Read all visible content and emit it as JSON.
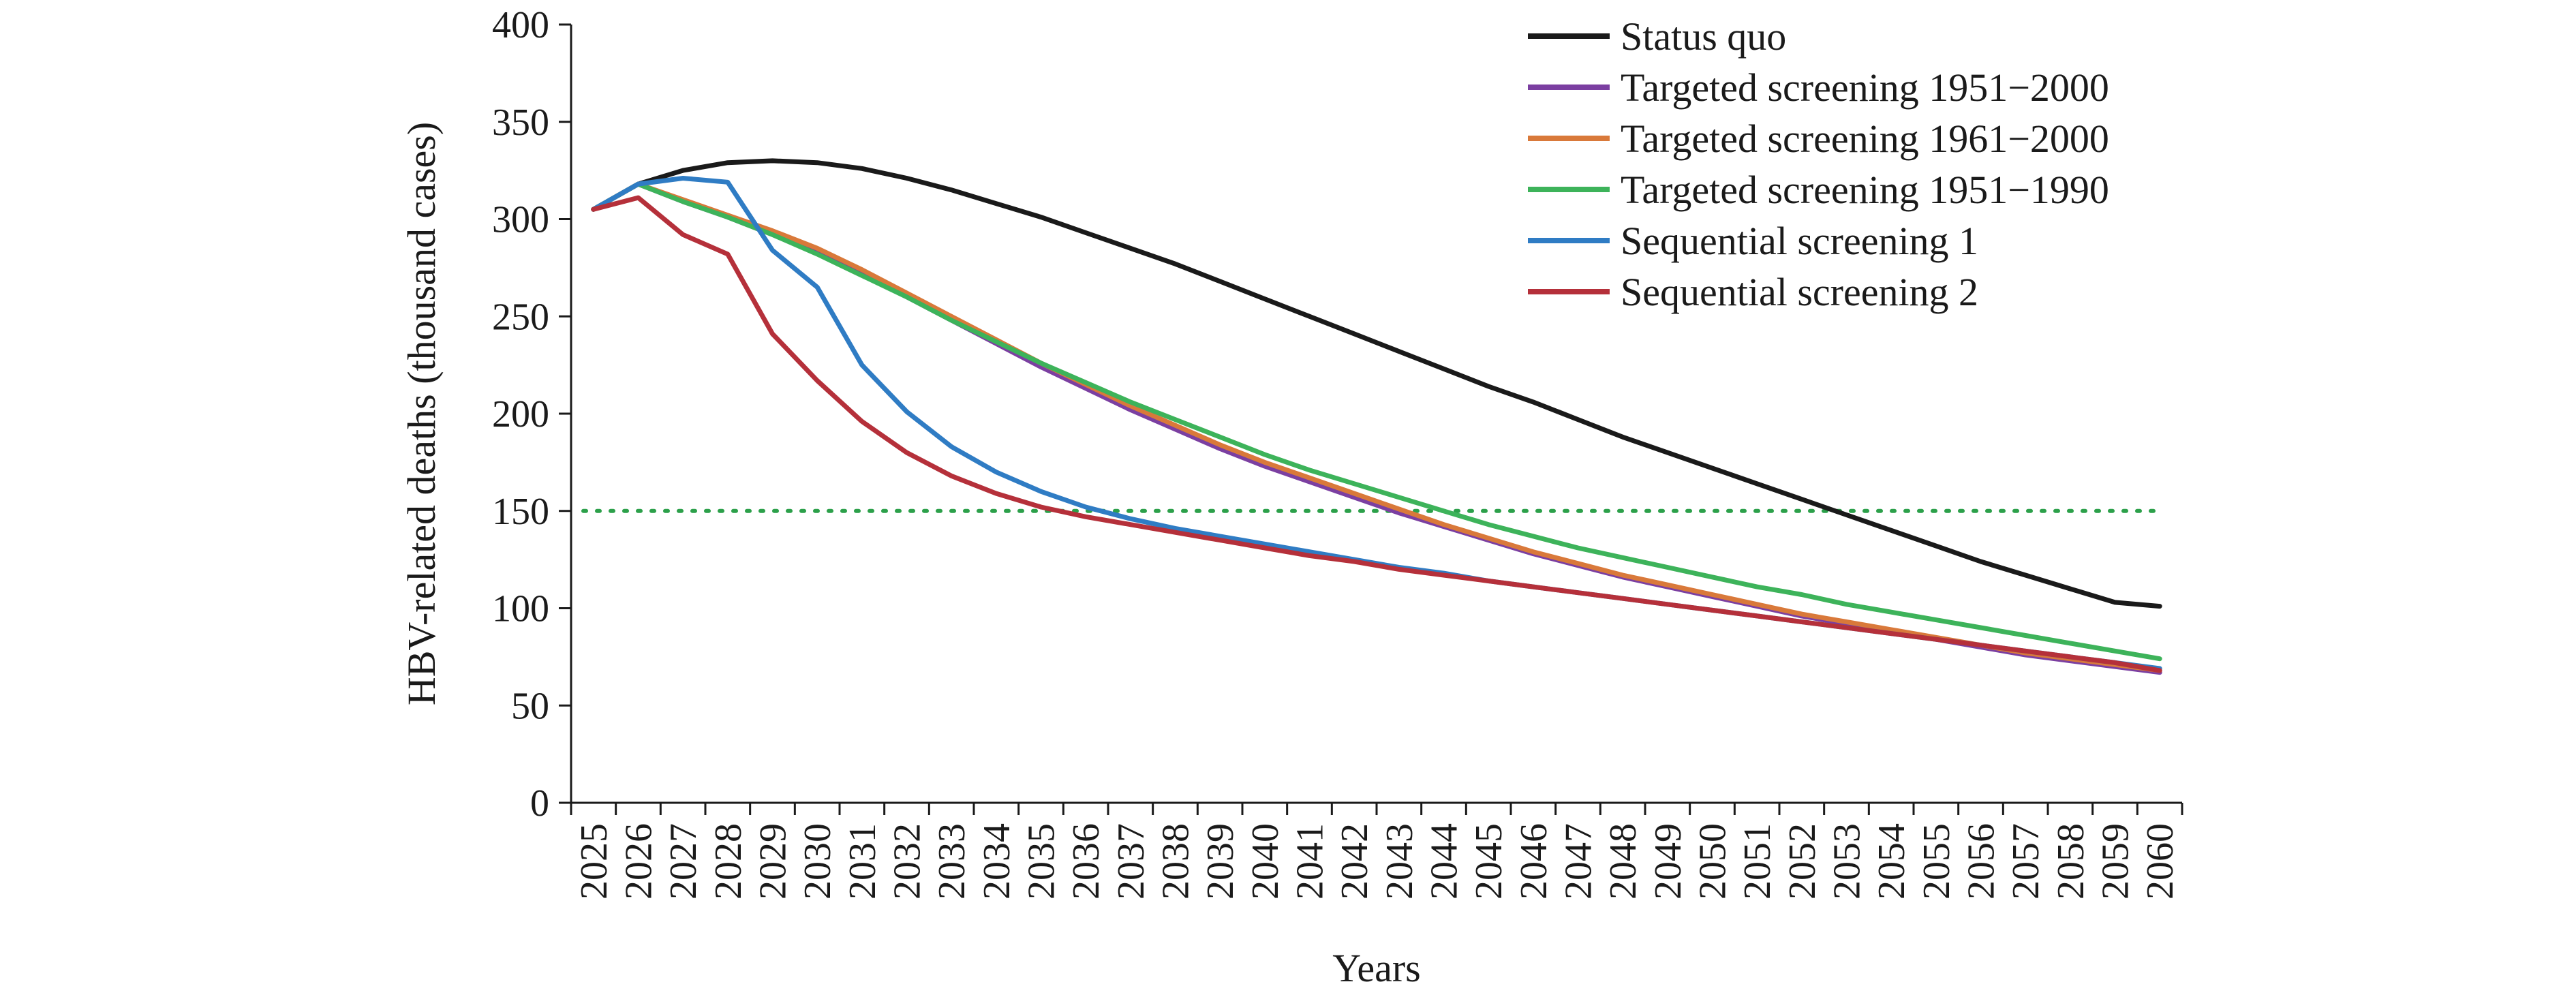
{
  "chart_data": {
    "type": "line",
    "title": "",
    "xlabel": "Years",
    "ylabel": "HBV-related deaths (thousand cases)",
    "ylim": [
      0,
      400
    ],
    "yticks": [
      0,
      50,
      100,
      150,
      200,
      250,
      300,
      350,
      400
    ],
    "grid": false,
    "legend_position": "top-right",
    "x": [
      2025,
      2026,
      2027,
      2028,
      2029,
      2030,
      2031,
      2032,
      2033,
      2034,
      2035,
      2036,
      2037,
      2038,
      2039,
      2040,
      2041,
      2042,
      2043,
      2044,
      2045,
      2046,
      2047,
      2048,
      2049,
      2050,
      2051,
      2052,
      2053,
      2054,
      2055,
      2056,
      2057,
      2058,
      2059,
      2060
    ],
    "reference_line": {
      "y": 150,
      "color": "#2ca04a",
      "style": "dotted"
    },
    "series": [
      {
        "name": "Status quo",
        "color": "#1a1a1a",
        "values": [
          305,
          318,
          325,
          329,
          330,
          329,
          326,
          321,
          315,
          308,
          301,
          293,
          285,
          277,
          268,
          259,
          250,
          241,
          232,
          223,
          214,
          206,
          197,
          188,
          180,
          172,
          164,
          156,
          148,
          140,
          132,
          124,
          117,
          110,
          103,
          101
        ]
      },
      {
        "name": "Targeted screening 1951−2000",
        "color": "#7b3fa1",
        "values": [
          305,
          318,
          309,
          301,
          292,
          283,
          272,
          260,
          248,
          236,
          224,
          213,
          202,
          192,
          182,
          173,
          165,
          157,
          149,
          142,
          135,
          128,
          122,
          116,
          111,
          106,
          101,
          96,
          92,
          88,
          84,
          80,
          76,
          73,
          70,
          67
        ]
      },
      {
        "name": "Targeted screening 1961−2000",
        "color": "#d9793a",
        "values": [
          305,
          318,
          310,
          302,
          294,
          285,
          274,
          262,
          250,
          238,
          226,
          215,
          204,
          194,
          184,
          175,
          167,
          159,
          151,
          143,
          136,
          129,
          123,
          117,
          112,
          107,
          102,
          97,
          93,
          89,
          85,
          81,
          77,
          74,
          71,
          68
        ]
      },
      {
        "name": "Targeted screening 1951−1990",
        "color": "#3db35a",
        "values": [
          305,
          318,
          309,
          301,
          292,
          282,
          271,
          260,
          248,
          237,
          226,
          216,
          206,
          197,
          188,
          179,
          171,
          164,
          157,
          150,
          143,
          137,
          131,
          126,
          121,
          116,
          111,
          107,
          102,
          98,
          94,
          90,
          86,
          82,
          78,
          74
        ]
      },
      {
        "name": "Sequential screening 1",
        "color": "#2f7cc4",
        "values": [
          305,
          318,
          321,
          319,
          284,
          265,
          225,
          201,
          183,
          170,
          160,
          152,
          146,
          141,
          137,
          133,
          129,
          125,
          121,
          118,
          114,
          111,
          108,
          105,
          102,
          99,
          96,
          93,
          90,
          87,
          84,
          81,
          78,
          75,
          72,
          69
        ]
      },
      {
        "name": "Sequential screening 2",
        "color": "#b5303a",
        "values": [
          305,
          311,
          292,
          282,
          241,
          217,
          196,
          180,
          168,
          159,
          152,
          147,
          143,
          139,
          135,
          131,
          127,
          124,
          120,
          117,
          114,
          111,
          108,
          105,
          102,
          99,
          96,
          93,
          90,
          87,
          84,
          81,
          78,
          75,
          72,
          68
        ]
      }
    ]
  }
}
